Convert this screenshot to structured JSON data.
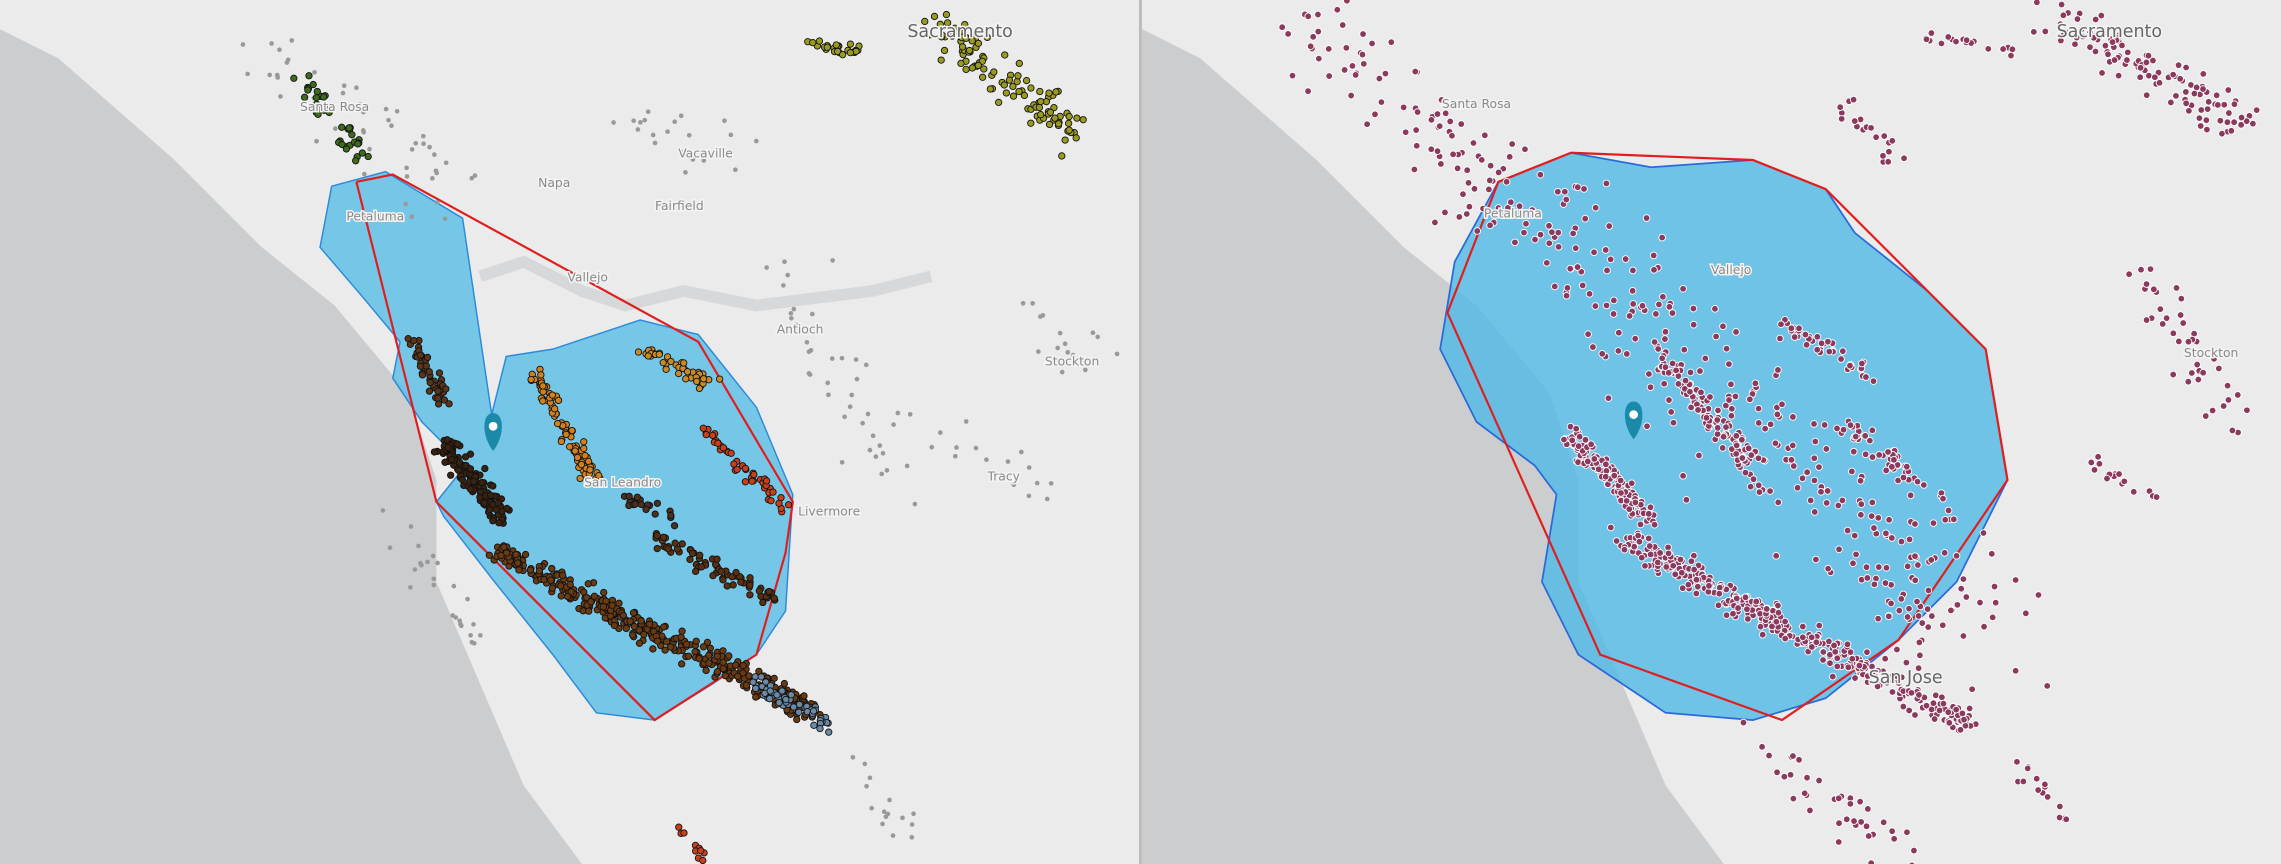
{
  "left_map": {
    "labels": [
      "Sacramento",
      "Santa Rosa",
      "Napa",
      "Vacaville",
      "Fairfield",
      "Petaluma",
      "Vallejo",
      "Antioch",
      "Stockton",
      "Tracy",
      "San Leandro",
      "Livermore"
    ]
  },
  "right_map": {
    "labels": [
      "Sacramento",
      "Santa Rosa",
      "Petaluma",
      "Vallejo",
      "Stockton",
      "San Jose"
    ]
  }
}
